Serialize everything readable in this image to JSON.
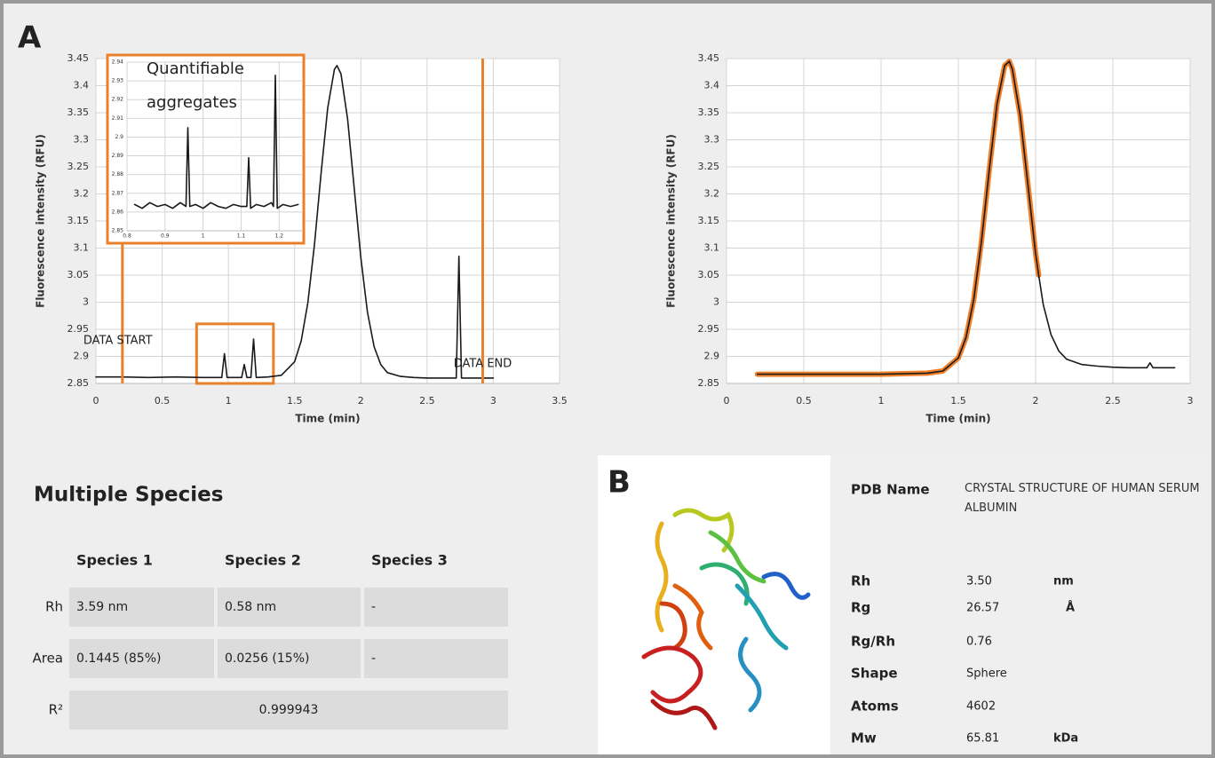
{
  "panel_label": "A",
  "chart_data": [
    {
      "type": "line",
      "x_label": "Time (min)",
      "y_label": "Fluorescence intensity (RFU)",
      "xlim": [
        0,
        3.5
      ],
      "xticks": [
        0,
        0.5,
        1,
        1.5,
        2,
        2.5,
        3,
        3.5
      ],
      "ylim": [
        2.85,
        3.45
      ],
      "yticks": [
        2.85,
        2.9,
        2.95,
        3,
        3.05,
        3.1,
        3.15,
        3.2,
        3.25,
        3.3,
        3.35,
        3.4,
        3.45
      ],
      "grid": true,
      "series": [
        {
          "color": "#1a1a1a",
          "x": [
            0,
            0.2,
            0.4,
            0.6,
            0.8,
            0.95,
            0.97,
            0.99,
            1.1,
            1.12,
            1.14,
            1.17,
            1.19,
            1.21,
            1.3,
            1.4,
            1.5,
            1.55,
            1.6,
            1.65,
            1.7,
            1.75,
            1.8,
            1.82,
            1.85,
            1.9,
            1.95,
            2.0,
            2.05,
            2.1,
            2.15,
            2.2,
            2.3,
            2.4,
            2.5,
            2.72,
            2.74,
            2.76,
            2.9,
            3.0
          ],
          "values": [
            2.862,
            2.862,
            2.861,
            2.862,
            2.861,
            2.861,
            2.905,
            2.861,
            2.861,
            2.885,
            2.861,
            2.861,
            2.932,
            2.861,
            2.862,
            2.865,
            2.89,
            2.929,
            2.999,
            3.107,
            3.238,
            3.359,
            3.43,
            3.437,
            3.422,
            3.338,
            3.211,
            3.082,
            2.982,
            2.918,
            2.885,
            2.87,
            2.863,
            2.861,
            2.86,
            2.86,
            3.085,
            2.86,
            2.86,
            2.86
          ]
        }
      ],
      "markers": [
        {
          "label": "DATA START",
          "x": 0.2,
          "color": "#e8822a"
        },
        {
          "label": "DATA END",
          "x": 2.92,
          "color": "#e8822a"
        }
      ],
      "zoom_box": {
        "xlim": [
          0.76,
          1.34
        ],
        "ylim": [
          2.85,
          2.96
        ],
        "color": "#e8822a"
      }
    },
    {
      "type": "line",
      "annotations": [
        "Quantifiable",
        "aggregates"
      ],
      "xlim": [
        0.8,
        1.26
      ],
      "xticks": [
        0.8,
        0.9,
        1,
        1.1,
        1.2
      ],
      "ylim": [
        2.85,
        2.94
      ],
      "yticks": [
        2.85,
        2.86,
        2.87,
        2.88,
        2.89,
        2.9,
        2.91,
        2.92,
        2.93,
        2.94
      ],
      "grid": true,
      "border_color": "#e8822a",
      "series": [
        {
          "color": "#1a1a1a",
          "x": [
            0.82,
            0.84,
            0.86,
            0.88,
            0.9,
            0.92,
            0.94,
            0.955,
            0.96,
            0.965,
            0.98,
            1.0,
            1.02,
            1.04,
            1.06,
            1.08,
            1.1,
            1.115,
            1.12,
            1.125,
            1.14,
            1.16,
            1.18,
            1.185,
            1.19,
            1.195,
            1.21,
            1.23,
            1.25
          ],
          "values": [
            2.864,
            2.862,
            2.865,
            2.863,
            2.864,
            2.862,
            2.865,
            2.863,
            2.905,
            2.863,
            2.864,
            2.862,
            2.865,
            2.863,
            2.862,
            2.864,
            2.863,
            2.863,
            2.889,
            2.862,
            2.864,
            2.863,
            2.865,
            2.863,
            2.933,
            2.862,
            2.864,
            2.863,
            2.864
          ]
        }
      ]
    },
    {
      "type": "line",
      "x_label": "Time (min)",
      "y_label": "Fluorescence intensity (RFU)",
      "xlim": [
        0,
        3
      ],
      "xticks": [
        0,
        0.5,
        1,
        1.5,
        2,
        2.5,
        3
      ],
      "ylim": [
        2.85,
        3.45
      ],
      "yticks": [
        2.85,
        2.9,
        2.95,
        3,
        3.05,
        3.1,
        3.15,
        3.2,
        3.25,
        3.3,
        3.35,
        3.4,
        3.45
      ],
      "grid": true,
      "series": [
        {
          "color": "#f07f2a",
          "x": [
            0.2,
            0.6,
            1.0,
            1.3,
            1.4,
            1.5,
            1.55,
            1.6,
            1.65,
            1.7,
            1.75,
            1.8,
            1.83,
            1.85,
            1.9,
            1.95,
            2.0,
            2.02
          ],
          "values": [
            2.867,
            2.867,
            2.867,
            2.869,
            2.873,
            2.897,
            2.935,
            3.005,
            3.113,
            3.244,
            3.366,
            3.437,
            3.445,
            3.43,
            3.345,
            3.218,
            3.09,
            3.05
          ]
        },
        {
          "color": "#1a1a1a",
          "x": [
            0.2,
            0.6,
            1.0,
            1.3,
            1.4,
            1.5,
            1.55,
            1.6,
            1.65,
            1.7,
            1.75,
            1.8,
            1.83,
            1.85,
            1.9,
            1.95,
            2.0,
            2.02,
            2.05,
            2.1,
            2.15,
            2.2,
            2.3,
            2.4,
            2.5,
            2.6,
            2.72,
            2.74,
            2.76,
            2.9
          ],
          "values": [
            2.867,
            2.867,
            2.867,
            2.869,
            2.873,
            2.897,
            2.935,
            3.005,
            3.113,
            3.244,
            3.366,
            3.437,
            3.445,
            3.43,
            3.345,
            3.218,
            3.09,
            3.05,
            2.995,
            2.94,
            2.91,
            2.895,
            2.885,
            2.882,
            2.88,
            2.879,
            2.879,
            2.888,
            2.879,
            2.879
          ]
        }
      ]
    }
  ],
  "species_table": {
    "title": "Multiple Species",
    "columns": [
      "Species 1",
      "Species 2",
      "Species 3"
    ],
    "rows": [
      {
        "label": "Rh",
        "cells": [
          "3.59 nm",
          "0.58 nm",
          "-"
        ]
      },
      {
        "label": "Area",
        "cells": [
          "0.1445 (85%)",
          "0.0256 (15%)",
          "-"
        ]
      },
      {
        "label": "R²",
        "cells": [
          "0.999943"
        ]
      }
    ]
  },
  "pdb_panel": {
    "label": "B",
    "rows": [
      {
        "label": "PDB Name",
        "value": "CRYSTAL STRUCTURE OF HUMAN SERUM ALBUMIN"
      },
      {
        "label": "Rh",
        "value": "3.50",
        "unit": "nm"
      },
      {
        "label": "Rg",
        "value": "26.57",
        "unit": "Å"
      },
      {
        "label": "Rg/Rh",
        "value": "0.76"
      },
      {
        "label": "Shape",
        "value": "Sphere"
      },
      {
        "label": "Atoms",
        "value": "4602"
      },
      {
        "label": "Mw",
        "value": "65.81",
        "unit": "kDa"
      }
    ]
  }
}
